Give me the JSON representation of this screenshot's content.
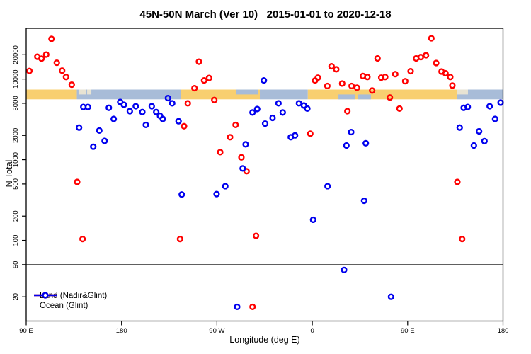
{
  "title": "45N-50N March (Ver 10)   2015-01-01 to 2020-12-18",
  "colors": {
    "land_marker": "#ff0000",
    "ocean_marker": "#0000ee",
    "band_land": "#f8cf70",
    "band_ocean": "#a8bcd8",
    "band_pale": "#e7e3d3",
    "axis": "#000000"
  },
  "chart_data": {
    "type": "scatter",
    "title": "45N-50N March (Ver 10)   2015-01-01 to 2020-12-18",
    "xlabel": "Longitude (deg E)",
    "ylabel": "N Total",
    "grid": false,
    "legend_position": "bottom-left",
    "x_axis": {
      "min": 90,
      "max": 540,
      "ticks": [
        {
          "pos": 90,
          "label": "90 E"
        },
        {
          "pos": 180,
          "label": "180"
        },
        {
          "pos": 270,
          "label": "90 W"
        },
        {
          "pos": 360,
          "label": "0"
        },
        {
          "pos": 450,
          "label": "90 E"
        },
        {
          "pos": 540,
          "label": "180"
        }
      ]
    },
    "y_axis": {
      "scale": "log",
      "min": 10,
      "max": 42500,
      "ticks": [
        20,
        50,
        100,
        200,
        500,
        1000,
        2000,
        5000,
        10000,
        20000
      ]
    },
    "reference_line_y": 50,
    "band": {
      "n_top": 7400,
      "n_bottom": 5600,
      "segments": [
        {
          "from": 90,
          "to": 137.8,
          "surface": "land"
        },
        {
          "from": 137.8,
          "to": 235.7,
          "surface": "ocean"
        },
        {
          "from": 235.7,
          "to": 310.5,
          "surface": "land"
        },
        {
          "from": 310.5,
          "to": 355.8,
          "surface": "ocean"
        },
        {
          "from": 355.8,
          "to": 496.5,
          "surface": "land"
        },
        {
          "from": 496.5,
          "to": 540,
          "surface": "ocean"
        }
      ],
      "patches": [
        {
          "from": 139.4,
          "to": 146.8,
          "part": "top",
          "surface": "pale"
        },
        {
          "from": 147.5,
          "to": 151.5,
          "part": "top",
          "surface": "pale"
        },
        {
          "from": 287.8,
          "to": 308.5,
          "part": "top",
          "surface": "ocean"
        },
        {
          "from": 384.7,
          "to": 400.7,
          "part": "bottom",
          "surface": "ocean"
        },
        {
          "from": 402.7,
          "to": 415.4,
          "part": "bottom",
          "surface": "ocean"
        },
        {
          "from": 496.9,
          "to": 506.9,
          "part": "top",
          "surface": "pale"
        }
      ]
    },
    "series": [
      {
        "name": "Land (Nadir&Glint)",
        "color": "#ff0000",
        "points": [
          [
            93,
            12600
          ],
          [
            100.5,
            18900
          ],
          [
            104.5,
            17900
          ],
          [
            108.9,
            20100
          ],
          [
            113.9,
            31500
          ],
          [
            118.9,
            15900
          ],
          [
            123.9,
            12700
          ],
          [
            127.6,
            10600
          ],
          [
            133,
            8500
          ],
          [
            138.1,
            530
          ],
          [
            143.2,
            104
          ],
          [
            235.2,
            104
          ],
          [
            242.5,
            5000
          ],
          [
            253,
            16400
          ],
          [
            248.8,
            7700
          ],
          [
            257.9,
            9600
          ],
          [
            262.6,
            10300
          ],
          [
            267.5,
            5500
          ],
          [
            239,
            2600
          ],
          [
            273.1,
            1240
          ],
          [
            282.4,
            1900
          ],
          [
            293.1,
            1070
          ],
          [
            298,
            720
          ],
          [
            306.9,
            114
          ],
          [
            303.6,
            15
          ],
          [
            287.6,
            2700
          ],
          [
            358.1,
            2100
          ],
          [
            365.3,
            10400
          ],
          [
            362.6,
            9600
          ],
          [
            374.2,
            8200
          ],
          [
            378.2,
            14400
          ],
          [
            382.6,
            13200
          ],
          [
            388.2,
            8800
          ],
          [
            393.1,
            4000
          ],
          [
            397.1,
            8200
          ],
          [
            402.2,
            7800
          ],
          [
            407.8,
            10900
          ],
          [
            412,
            10600
          ],
          [
            416.5,
            7200
          ],
          [
            421.6,
            18000
          ],
          [
            425.1,
            10400
          ],
          [
            428.8,
            10600
          ],
          [
            433.2,
            5900
          ],
          [
            438.3,
            11500
          ],
          [
            442.3,
            4300
          ],
          [
            447.7,
            9400
          ],
          [
            452.8,
            12500
          ],
          [
            458,
            18000
          ],
          [
            462.4,
            18700
          ],
          [
            467.3,
            19700
          ],
          [
            472.4,
            32000
          ],
          [
            476.9,
            15800
          ],
          [
            482,
            12400
          ],
          [
            485.7,
            11800
          ],
          [
            490.2,
            10600
          ],
          [
            492.2,
            8300
          ],
          [
            496.9,
            530
          ],
          [
            501.4,
            104
          ]
        ]
      },
      {
        "name": "Ocean (Glint)",
        "color": "#0000ee",
        "points": [
          [
            143.9,
            4500
          ],
          [
            148.3,
            4500
          ],
          [
            168,
            4400
          ],
          [
            178.7,
            5200
          ],
          [
            182.2,
            4800
          ],
          [
            187.8,
            4000
          ],
          [
            193.4,
            4600
          ],
          [
            199.6,
            3900
          ],
          [
            172.6,
            3200
          ],
          [
            139.9,
            2500
          ],
          [
            159,
            2300
          ],
          [
            164,
            1710
          ],
          [
            153.3,
            1450
          ],
          [
            202.9,
            2700
          ],
          [
            223.8,
            5800
          ],
          [
            227.8,
            5000
          ],
          [
            208.5,
            4600
          ],
          [
            212.7,
            3900
          ],
          [
            216.3,
            3500
          ],
          [
            218.9,
            3200
          ],
          [
            233.8,
            3000
          ],
          [
            236.8,
            370
          ],
          [
            269.7,
            375
          ],
          [
            277.9,
            470
          ],
          [
            294.3,
            780
          ],
          [
            297.1,
            1550
          ],
          [
            289.1,
            15
          ],
          [
            303.6,
            3850
          ],
          [
            308,
            4250
          ],
          [
            314.3,
            9600
          ],
          [
            315.5,
            2800
          ],
          [
            322.5,
            3300
          ],
          [
            328.1,
            5000
          ],
          [
            332.1,
            3850
          ],
          [
            339.7,
            1900
          ],
          [
            343.7,
            2000
          ],
          [
            347.4,
            5000
          ],
          [
            352.1,
            4700
          ],
          [
            355.3,
            4300
          ],
          [
            360.8,
            180
          ],
          [
            374.4,
            470
          ],
          [
            390,
            43
          ],
          [
            392.2,
            1500
          ],
          [
            396.7,
            2200
          ],
          [
            410.5,
            1600
          ],
          [
            408.9,
            310
          ],
          [
            434.3,
            20
          ],
          [
            499.1,
            2500
          ],
          [
            502.9,
            4400
          ],
          [
            506.7,
            4500
          ],
          [
            517.4,
            2250
          ],
          [
            522.5,
            1700
          ],
          [
            512.5,
            1500
          ],
          [
            527.4,
            4600
          ],
          [
            532.5,
            3200
          ],
          [
            537.7,
            5100
          ]
        ]
      }
    ]
  }
}
